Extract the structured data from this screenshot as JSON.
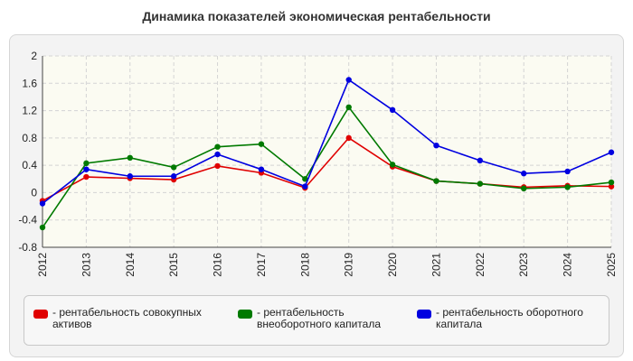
{
  "chart_data": {
    "type": "line",
    "title": "Динамика показателей экономическая рентабельности",
    "x": [
      "2012",
      "2013",
      "2014",
      "2015",
      "2016",
      "2017",
      "2018",
      "2019",
      "2020",
      "2021",
      "2022",
      "2023",
      "2024",
      "2025"
    ],
    "ylim": [
      -0.8,
      2
    ],
    "yticks": [
      "2",
      "1.6",
      "1.2",
      "0.8",
      "0.4",
      "0",
      "-0.4",
      "-0.8"
    ],
    "grid": true,
    "legend_position": "bottom",
    "series": [
      {
        "name": "- рентабельность совокупных активов",
        "color": "#e00000",
        "values": [
          -0.12,
          0.23,
          0.21,
          0.19,
          0.39,
          0.29,
          0.07,
          0.8,
          0.38,
          0.17,
          0.13,
          0.08,
          0.1,
          0.09
        ]
      },
      {
        "name": "- рентабельность внеоборотного капитала",
        "color": "#007a00",
        "values": [
          -0.51,
          0.43,
          0.51,
          0.37,
          0.67,
          0.71,
          0.2,
          1.25,
          0.41,
          0.17,
          0.13,
          0.06,
          0.08,
          0.15
        ]
      },
      {
        "name": "- рентабельность оборотного капитала",
        "color": "#0000e0",
        "values": [
          -0.16,
          0.34,
          0.24,
          0.24,
          0.56,
          0.34,
          0.09,
          1.65,
          1.21,
          0.69,
          0.47,
          0.28,
          0.31,
          0.59
        ]
      }
    ]
  }
}
